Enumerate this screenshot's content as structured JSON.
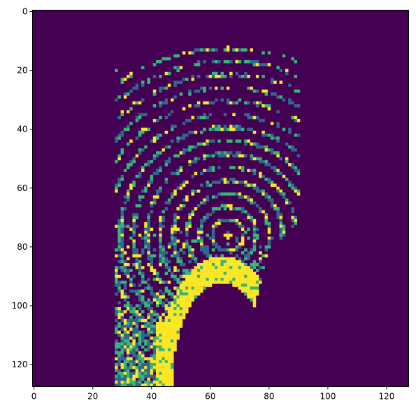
{
  "chart_data": {
    "type": "heatmap",
    "title": "",
    "xlabel": "",
    "ylabel": "",
    "grid": false,
    "legend": "none",
    "colormap": "viridis",
    "rows": 128,
    "cols": 128,
    "xlim": [
      -0.5,
      127.5
    ],
    "ylim": [
      127.5,
      -0.5
    ],
    "x_ticks": [
      0,
      20,
      40,
      60,
      80,
      100,
      120
    ],
    "y_ticks": [
      0,
      20,
      40,
      60,
      80,
      100,
      120
    ],
    "x_tick_labels": [
      "0",
      "20",
      "40",
      "60",
      "80",
      "100",
      "120"
    ],
    "y_tick_labels": [
      "0",
      "20",
      "40",
      "60",
      "80",
      "100",
      "120"
    ],
    "value_levels": [
      0,
      1,
      2,
      3
    ],
    "level_colors": [
      "#440154",
      "#31688e",
      "#35b779",
      "#fde725"
    ],
    "description_of_values": {
      "background_level": 0,
      "ring_center": [
        66,
        76
      ],
      "ring_spacing_rows": 4.5,
      "outer_ring_radius": 64,
      "left_boundary_x": 28,
      "right_boundary_x_top": 90,
      "dense_region_bottom_x": [
        42,
        48
      ],
      "arch_apex": [
        68,
        92
      ],
      "arch_base_x": [
        47,
        77
      ]
    }
  }
}
